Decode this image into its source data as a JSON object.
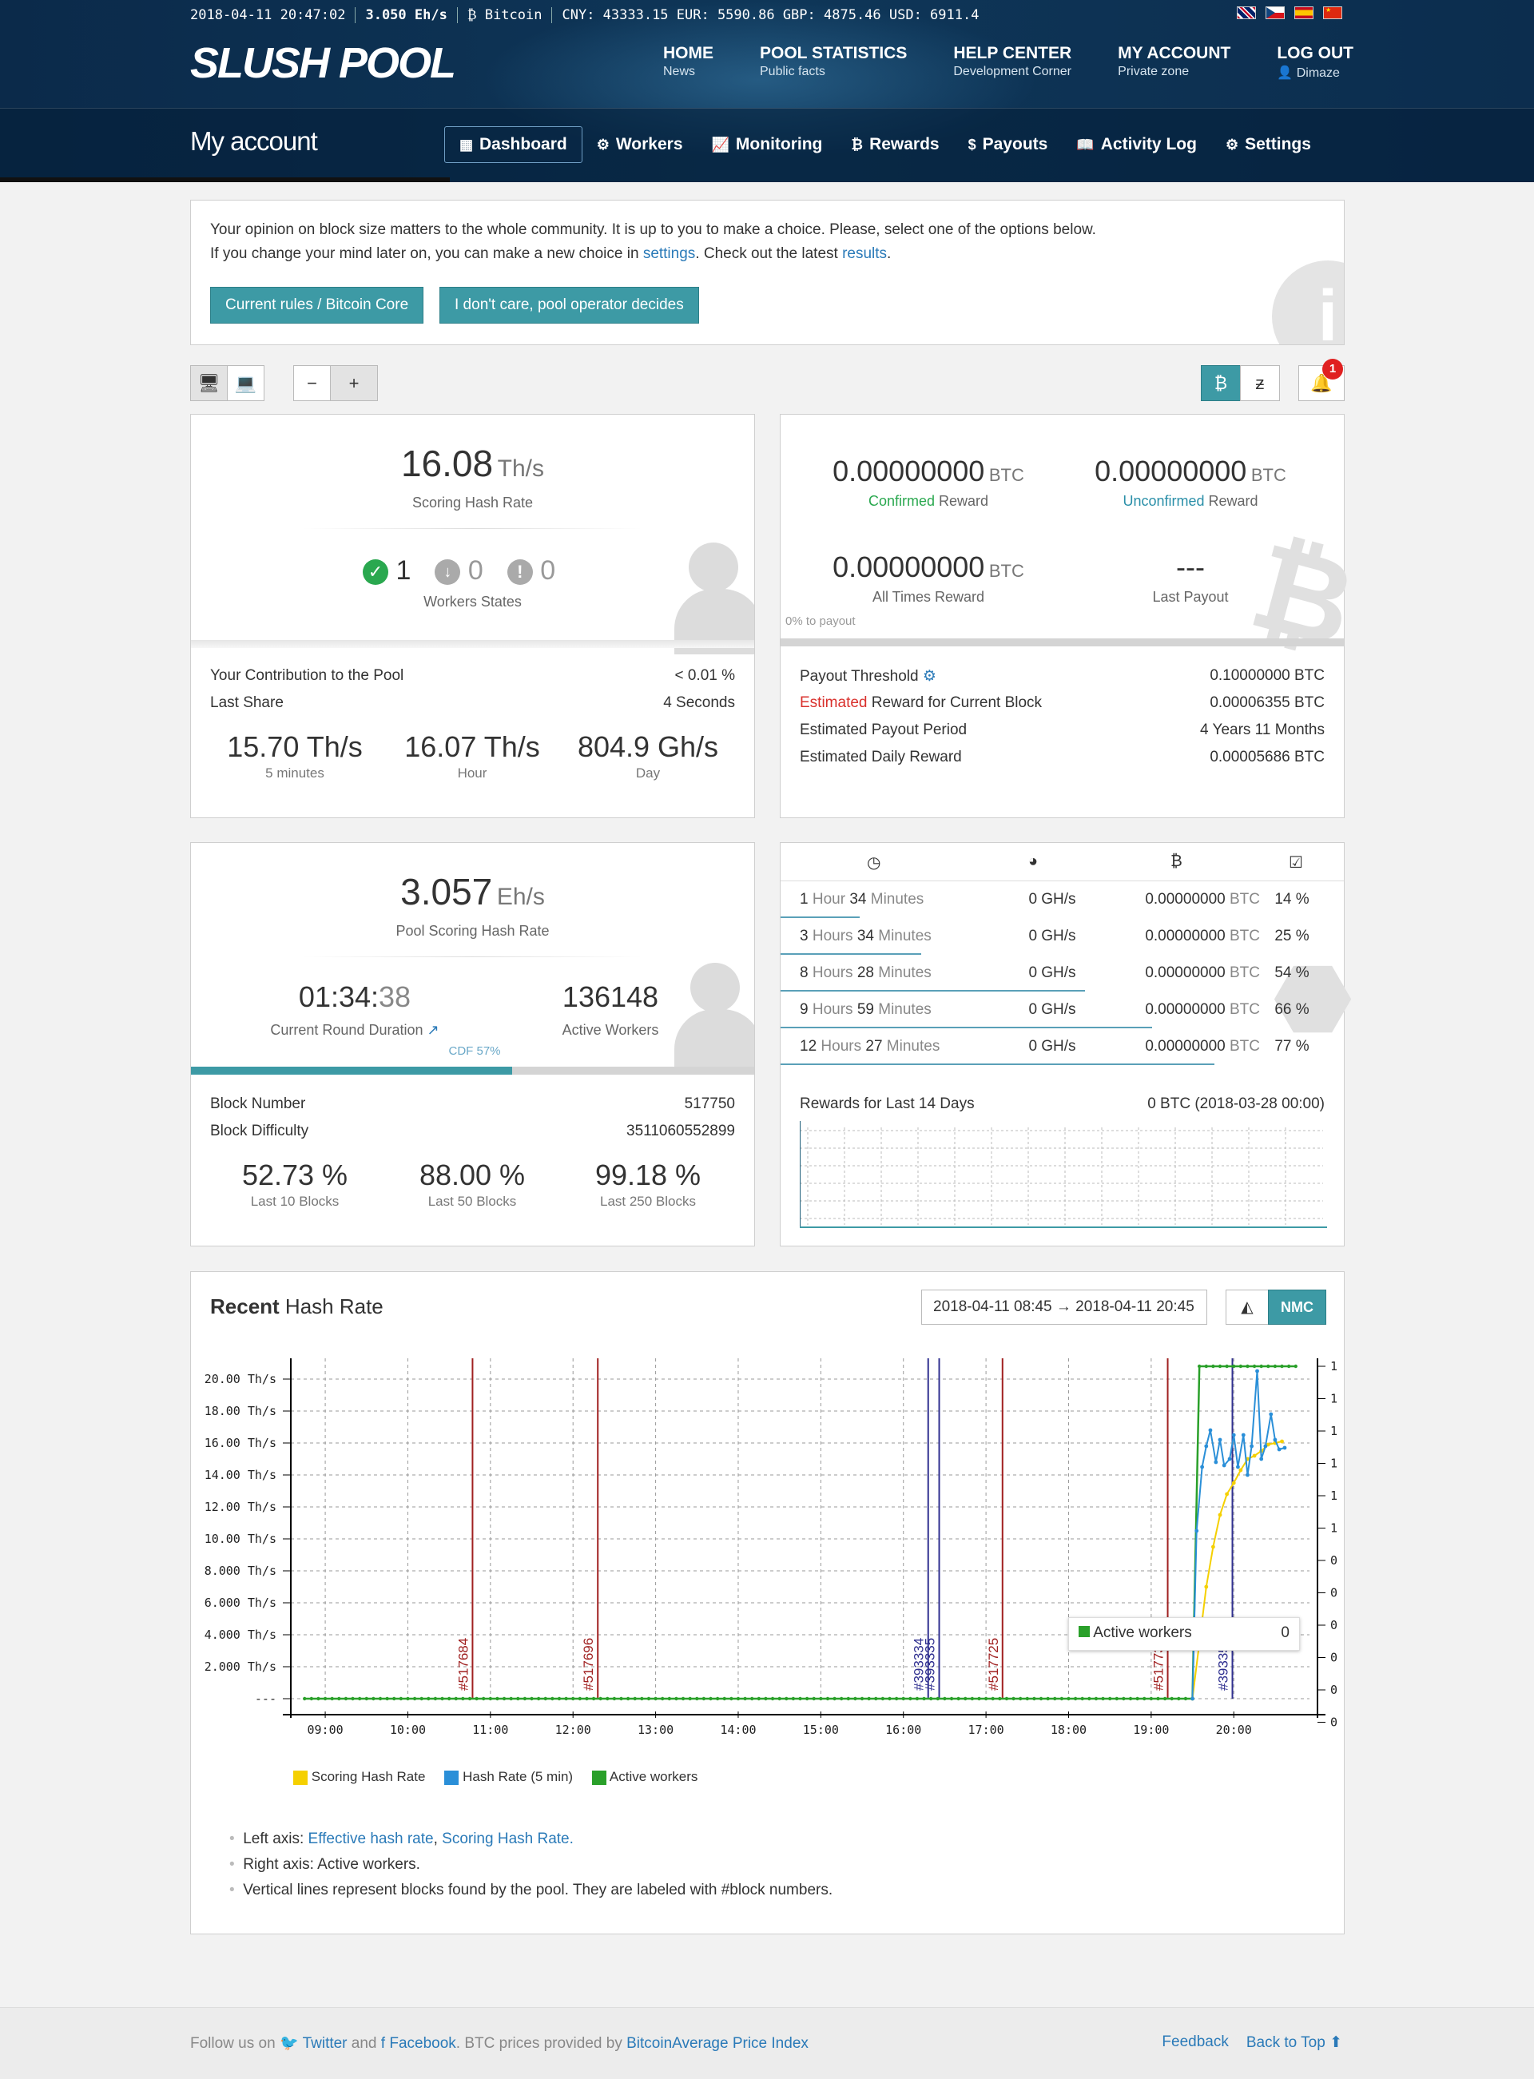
{
  "ticker": {
    "datetime": "2018-04-11 20:47:02",
    "pool_rate": "3.050 Eh/s",
    "coin": "Bitcoin",
    "prices": "CNY: 43333.15  EUR: 5590.86  GBP: 4875.46  USD: 6911.4"
  },
  "logo": "SLUSH POOL",
  "topnav": [
    {
      "title": "HOME",
      "sub": "News"
    },
    {
      "title": "POOL STATISTICS",
      "sub": "Public facts"
    },
    {
      "title": "HELP CENTER",
      "sub": "Development Corner"
    },
    {
      "title": "MY ACCOUNT",
      "sub": "Private zone"
    },
    {
      "title": "LOG OUT",
      "sub": "Dimaze"
    }
  ],
  "page_title": "My account",
  "subnav": [
    {
      "label": "Dashboard",
      "icon": "dashboard-icon"
    },
    {
      "label": "Workers",
      "icon": "gears-icon"
    },
    {
      "label": "Monitoring",
      "icon": "line-chart-icon"
    },
    {
      "label": "Rewards",
      "icon": "bitcoin-icon"
    },
    {
      "label": "Payouts",
      "icon": "dollar-icon"
    },
    {
      "label": "Activity Log",
      "icon": "book-icon"
    },
    {
      "label": "Settings",
      "icon": "gear-icon"
    }
  ],
  "notice": {
    "line1": "Your opinion on block size matters to the whole community. It is up to you to make a choice. Please, select one of the options below.",
    "line2_a": "If you change your mind later on, you can make a new choice in ",
    "line2_link1": "settings",
    "line2_b": ". Check out the latest ",
    "line2_link2": "results",
    "line2_c": ".",
    "button1": "Current rules / Bitcoin Core",
    "button2": "I don't care, pool operator decides"
  },
  "notifications_count": "1",
  "hashrate_panel": {
    "value": "16.08",
    "unit": "Th/s",
    "label": "Scoring Hash Rate",
    "states": {
      "ok": "1",
      "low": "0",
      "off": "0"
    },
    "states_label": "Workers States",
    "contribution_label": "Your Contribution to the Pool",
    "contribution_value": "< 0.01 %",
    "last_share_label": "Last Share",
    "last_share_value": "4 Seconds",
    "r5": "15.70 Th/s",
    "r5_label": "5 minutes",
    "rh": "16.07 Th/s",
    "rh_label": "Hour",
    "rd": "804.9 Gh/s",
    "rd_label": "Day"
  },
  "reward_panel": {
    "confirmed": "0.00000000",
    "confirmed_word": "Confirmed",
    "confirmed_suffix": " Reward",
    "unconfirmed": "0.00000000",
    "unconfirmed_word": "Unconfirmed",
    "unconfirmed_suffix": " Reward",
    "all_times": "0.00000000",
    "all_times_label": "All Times Reward",
    "last_payout": "---",
    "last_payout_label": "Last Payout",
    "btc": "BTC",
    "to_payout": "0% to payout",
    "threshold_label": "Payout Threshold",
    "threshold_value": "0.10000000 BTC",
    "est_word": "Estimated",
    "est_rest": " Reward for Current Block",
    "est_value": "0.00006355 BTC",
    "period_label": "Estimated Payout Period",
    "period_value": "4 Years 11 Months",
    "daily_label": "Estimated Daily Reward",
    "daily_value": "0.00005686 BTC"
  },
  "pool_panel": {
    "value": "3.057",
    "unit": "Eh/s",
    "label": "Pool Scoring Hash Rate",
    "duration_a": "01:34:",
    "duration_b": "38",
    "duration_label": "Current Round Duration",
    "workers": "136148",
    "workers_label": "Active Workers",
    "cdf": "CDF 57%",
    "cdf_fraction": 0.57,
    "block_number_label": "Block Number",
    "block_number": "517750",
    "difficulty_label": "Block Difficulty",
    "difficulty": "3511060552899",
    "l10": "52.73 %",
    "l10_label": "Last 10 Blocks",
    "l50": "88.00 %",
    "l50_label": "Last 50 Blocks",
    "l250": "99.18 %",
    "l250_label": "Last 250 Blocks"
  },
  "rounds": [
    {
      "dur_a": "1",
      "dur_b": " Hour ",
      "dur_c": "34",
      "dur_d": " Minutes",
      "rate": "0 GH/s",
      "btc": "0.00000000",
      "pct": "14 %",
      "progress": 0.14
    },
    {
      "dur_a": "3",
      "dur_b": " Hours ",
      "dur_c": "34",
      "dur_d": " Minutes",
      "rate": "0 GH/s",
      "btc": "0.00000000",
      "pct": "25 %",
      "progress": 0.25
    },
    {
      "dur_a": "8",
      "dur_b": " Hours ",
      "dur_c": "28",
      "dur_d": " Minutes",
      "rate": "0 GH/s",
      "btc": "0.00000000",
      "pct": "54 %",
      "progress": 0.54
    },
    {
      "dur_a": "9",
      "dur_b": " Hours ",
      "dur_c": "59",
      "dur_d": " Minutes",
      "rate": "0 GH/s",
      "btc": "0.00000000",
      "pct": "66 %",
      "progress": 0.66
    },
    {
      "dur_a": "12",
      "dur_b": " Hours ",
      "dur_c": "27",
      "dur_d": " Minutes",
      "rate": "0 GH/s",
      "btc": "0.00000000",
      "pct": "77 %",
      "progress": 0.77
    }
  ],
  "rewards14": {
    "label": "Rewards for Last 14 Days",
    "value": "0 BTC (2018-03-28 00:00)"
  },
  "recent": {
    "title_bold": "Recent",
    "title_rest": " Hash Rate",
    "range": "2018-04-11 08:45 → 2018-04-11 20:45",
    "nmc": "NMC",
    "tooltip_label": "Active workers",
    "tooltip_value": "0",
    "notes_left_a": "Left axis: ",
    "notes_left_l1": "Effective hash rate",
    "notes_left_sep": ", ",
    "notes_left_l2": "Scoring Hash Rate",
    "notes_left_end": ".",
    "notes_right": "Right axis: Active workers.",
    "notes_vertical": "Vertical lines represent blocks found by the pool. They are labeled with #block numbers."
  },
  "chart_data": {
    "type": "line",
    "xlabel": "",
    "ylabel": "",
    "x_ticks": [
      "09:00",
      "10:00",
      "11:00",
      "12:00",
      "13:00",
      "14:00",
      "15:00",
      "16:00",
      "17:00",
      "18:00",
      "19:00",
      "20:00"
    ],
    "y_ticks": [
      "20.00 Th/s",
      "18.00 Th/s",
      "16.00 Th/s",
      "14.00 Th/s",
      "12.00 Th/s",
      "10.00 Th/s",
      "8.000 Th/s",
      "6.000 Th/s",
      "4.000 Th/s",
      "2.000 Th/s",
      "---"
    ],
    "y_right_ticks": [
      "1",
      "1",
      "1",
      "1",
      "1",
      "1",
      "0",
      "0",
      "0",
      "0",
      "0",
      "0"
    ],
    "ylim": [
      0,
      20
    ],
    "xlim": [
      "08:45",
      "20:45"
    ],
    "series": [
      {
        "name": "Scoring Hash Rate",
        "color": "#f5d000",
        "x": [
          "19:30",
          "19:35",
          "19:40",
          "19:45",
          "19:50",
          "19:55",
          "20:00",
          "20:05",
          "20:10",
          "20:15",
          "20:20",
          "20:25",
          "20:30",
          "20:35"
        ],
        "values": [
          0,
          3.5,
          7.0,
          9.5,
          11.5,
          12.8,
          13.5,
          14.3,
          15.0,
          15.2,
          15.5,
          15.9,
          16.0,
          16.1
        ]
      },
      {
        "name": "Hash Rate (5 min)",
        "color": "#2a8fd8",
        "x": [
          "19:30",
          "19:33",
          "19:37",
          "19:40",
          "19:43",
          "19:47",
          "19:50",
          "19:53",
          "19:57",
          "20:00",
          "20:03",
          "20:07",
          "20:10",
          "20:13",
          "20:17",
          "20:20",
          "20:23",
          "20:27",
          "20:30",
          "20:33",
          "20:37"
        ],
        "values": [
          0,
          10.5,
          14.5,
          15.8,
          16.8,
          14.8,
          16.2,
          14.6,
          15.0,
          16.5,
          14.5,
          16.5,
          14.0,
          15.8,
          20.5,
          15.0,
          15.8,
          17.8,
          16.2,
          15.6,
          15.7
        ]
      },
      {
        "name": "Active workers",
        "color": "#2aa02a",
        "x": [
          "08:45",
          "19:30",
          "19:35",
          "20:45"
        ],
        "values": [
          0,
          0,
          1,
          1
        ]
      }
    ],
    "blocks": [
      {
        "label": "#517684",
        "time": "10:47",
        "color": "#a02020"
      },
      {
        "label": "#517696",
        "time": "12:18",
        "color": "#a02020"
      },
      {
        "label": "#393334",
        "time": "16:18",
        "color": "#303090"
      },
      {
        "label": "#393335",
        "time": "16:26",
        "color": "#303090"
      },
      {
        "label": "#517725",
        "time": "17:12",
        "color": "#a02020"
      },
      {
        "label": "#517736",
        "time": "19:12",
        "color": "#a02020"
      },
      {
        "label": "#393356",
        "time": "19:59",
        "color": "#303090"
      }
    ],
    "legend": "bottom-left",
    "grid": true
  },
  "footer": {
    "follow": "Follow us on ",
    "twitter": "Twitter",
    "and": " and ",
    "facebook": "Facebook",
    "prices": ". BTC prices provided by ",
    "bitcoinaverage": "BitcoinAverage Price Index",
    "feedback": "Feedback",
    "back_to_top": "Back to Top"
  }
}
